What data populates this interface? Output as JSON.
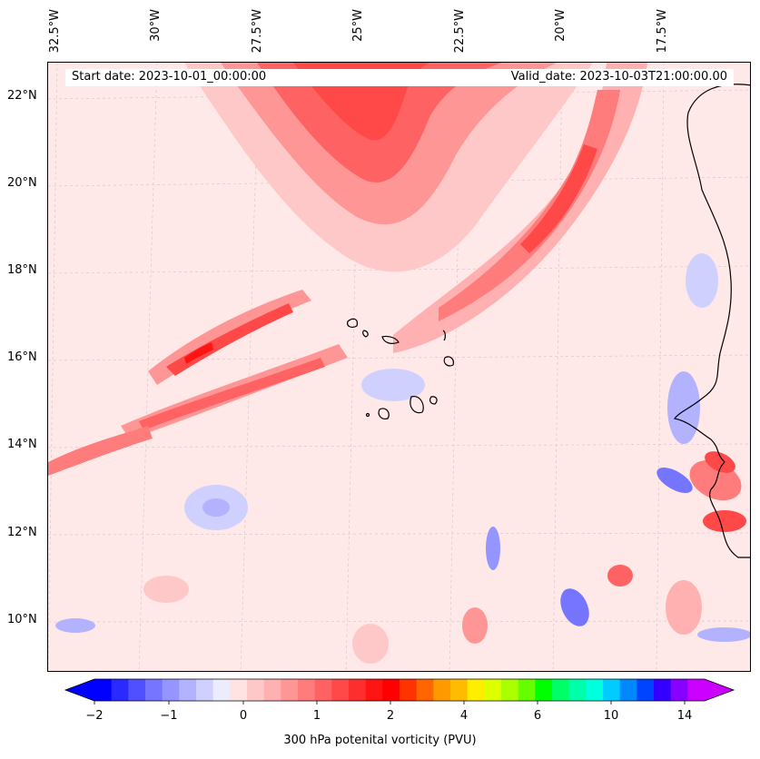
{
  "header": {
    "start_date": "Start date: 2023-10-01_00:00:00",
    "valid_date": "Valid_date: 2023-10-03T21:00:00.00"
  },
  "longitude_labels": [
    "32.5°W",
    "30°W",
    "27.5°W",
    "25°W",
    "22.5°W",
    "20°W",
    "17.5°W"
  ],
  "latitude_labels": [
    "22°N",
    "20°N",
    "18°N",
    "16°N",
    "14°N",
    "12°N",
    "10°N"
  ],
  "colorbar": {
    "label": "300 hPa potenital vorticity (PVU)",
    "ticks": [
      "−2",
      "−1",
      "0",
      "1",
      "2",
      "4",
      "6",
      "10",
      "14"
    ],
    "colors": [
      "#0000ff",
      "#2a2aff",
      "#5050ff",
      "#7575ff",
      "#9595ff",
      "#b2b2ff",
      "#d0d0ff",
      "#ececff",
      "#ffe2e2",
      "#ffc8c8",
      "#ffb0b0",
      "#ff9696",
      "#ff7c7c",
      "#ff6262",
      "#ff4848",
      "#ff2e2e",
      "#ff1414",
      "#ff0000",
      "#ff3300",
      "#ff6600",
      "#ff9900",
      "#ffbb00",
      "#ffee00",
      "#ddff00",
      "#aaff00",
      "#66ff00",
      "#00ff00",
      "#00ff66",
      "#00ffaa",
      "#00ffdd",
      "#00ccff",
      "#0088ff",
      "#0044ff",
      "#3300ff",
      "#8800ff",
      "#cc00ff"
    ],
    "extend_left_color": "#0000ff",
    "extend_right_color": "#cc00ff"
  },
  "colors": {
    "background_low_pv": "#ffe8e8",
    "coastline": "#000000"
  }
}
